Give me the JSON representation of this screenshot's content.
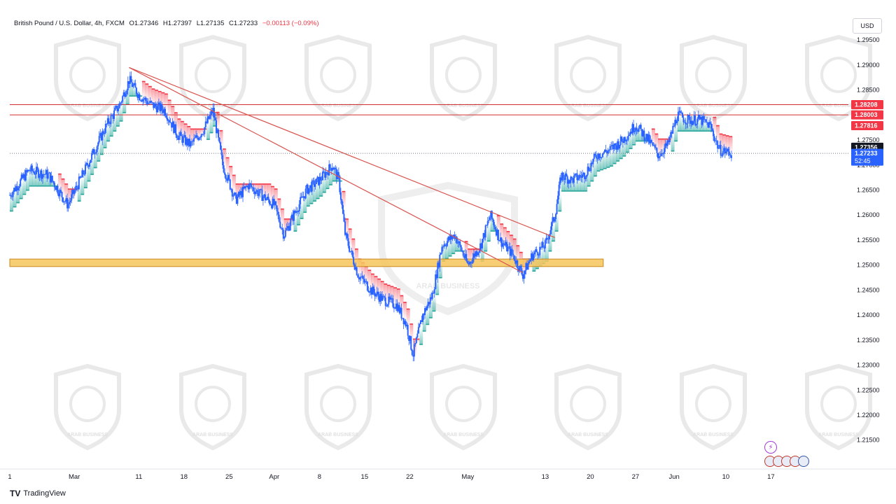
{
  "header": {
    "symbol": "British Pound / U.S. Dollar, 4h, FXCM",
    "open": "O1.27346",
    "high": "H1.27397",
    "low": "L1.27135",
    "close": "C1.27233",
    "change": "−0.00113 (−0.09%)"
  },
  "currency": "USD",
  "footer": {
    "brand": "TradingView"
  },
  "watermark": {
    "text": "ARAB BUSINESS"
  },
  "chart_data": {
    "type": "candlestick",
    "xlabel": "",
    "ylabel": "",
    "y_ticks": [
      "1.29500",
      "1.29000",
      "1.28500",
      "1.28000",
      "1.27500",
      "1.27000",
      "1.26500",
      "1.26000",
      "1.25500",
      "1.25000",
      "1.24500",
      "1.24000",
      "1.23500",
      "1.23000",
      "1.22500",
      "1.22000",
      "1.21500"
    ],
    "ylim": [
      1.2095,
      1.3002
    ],
    "x_ticks": [
      {
        "label": "1",
        "day": 0
      },
      {
        "label": "Mar",
        "day": 10
      },
      {
        "label": "11",
        "day": 20
      },
      {
        "label": "18",
        "day": 27
      },
      {
        "label": "25",
        "day": 34
      },
      {
        "label": "Apr",
        "day": 41
      },
      {
        "label": "8",
        "day": 48
      },
      {
        "label": "15",
        "day": 55
      },
      {
        "label": "22",
        "day": 62
      },
      {
        "label": "May",
        "day": 71
      },
      {
        "label": "13",
        "day": 83
      },
      {
        "label": "20",
        "day": 90
      },
      {
        "label": "27",
        "day": 97
      },
      {
        "label": "Jun",
        "day": 103
      },
      {
        "label": "10",
        "day": 111
      },
      {
        "label": "17",
        "day": 118
      }
    ],
    "xlim": [
      0,
      130
    ],
    "price_path": [
      [
        0,
        1.264
      ],
      [
        3,
        1.269
      ],
      [
        6,
        1.268
      ],
      [
        9,
        1.262
      ],
      [
        12,
        1.27
      ],
      [
        15,
        1.278
      ],
      [
        17,
        1.282
      ],
      [
        18.5,
        1.287
      ],
      [
        20,
        1.284
      ],
      [
        22,
        1.282
      ],
      [
        24,
        1.281
      ],
      [
        26,
        1.276
      ],
      [
        28,
        1.274
      ],
      [
        30,
        1.277
      ],
      [
        31.5,
        1.281
      ],
      [
        33,
        1.27
      ],
      [
        35,
        1.263
      ],
      [
        37,
        1.266
      ],
      [
        39,
        1.264
      ],
      [
        41,
        1.262
      ],
      [
        42.5,
        1.256
      ],
      [
        44,
        1.26
      ],
      [
        46,
        1.265
      ],
      [
        48,
        1.267
      ],
      [
        50,
        1.27
      ],
      [
        51,
        1.267
      ],
      [
        52,
        1.256
      ],
      [
        54,
        1.248
      ],
      [
        56,
        1.245
      ],
      [
        58,
        1.243
      ],
      [
        60,
        1.242
      ],
      [
        61.5,
        1.238
      ],
      [
        62.5,
        1.232
      ],
      [
        64,
        1.24
      ],
      [
        65.5,
        1.244
      ],
      [
        67,
        1.254
      ],
      [
        69,
        1.256
      ],
      [
        71,
        1.25
      ],
      [
        73,
        1.254
      ],
      [
        74.5,
        1.26
      ],
      [
        76,
        1.255
      ],
      [
        78,
        1.252
      ],
      [
        79.5,
        1.248
      ],
      [
        81,
        1.252
      ],
      [
        83,
        1.254
      ],
      [
        84.5,
        1.26
      ],
      [
        85.5,
        1.268
      ],
      [
        87,
        1.267
      ],
      [
        89,
        1.268
      ],
      [
        91,
        1.272
      ],
      [
        93,
        1.273
      ],
      [
        95,
        1.275
      ],
      [
        97,
        1.278
      ],
      [
        99,
        1.275
      ],
      [
        100.5,
        1.272
      ],
      [
        102,
        1.274
      ],
      [
        103.5,
        1.28
      ],
      [
        105,
        1.279
      ],
      [
        107,
        1.279
      ],
      [
        108.5,
        1.278
      ],
      [
        110,
        1.273
      ],
      [
        112,
        1.2723
      ]
    ],
    "trendlines": [
      {
        "from": [
          18.5,
          1.2895
        ],
        "to": [
          84.5,
          1.2555
        ]
      },
      {
        "from": [
          18.5,
          1.2895
        ],
        "to": [
          79.5,
          1.2485
        ]
      }
    ],
    "horizontal_levels": [
      1.28208,
      1.28003
    ],
    "support_zone": {
      "from": 1.2497,
      "to": 1.2512
    },
    "price_labels": [
      {
        "value": 1.28208,
        "text": "1.28208",
        "bg": "#f23645"
      },
      {
        "value": 1.28003,
        "text": "1.28003",
        "bg": "#f23645"
      },
      {
        "value": 1.27816,
        "text": "1.27816",
        "bg": "#f23645"
      },
      {
        "value": 1.27356,
        "text": "1.27356",
        "bg": "#131722"
      },
      {
        "value": 1.27233,
        "text": "1.27233",
        "sub": "52:45",
        "bg": "#2962ff"
      }
    ],
    "last_price": 1.27233,
    "colors": {
      "candle": "#2962ff",
      "trend_red": "#f23645",
      "trend_green": "#26a69a",
      "level_line": "#d32f2f",
      "zone_fill": "#f7c65d",
      "zone_border": "#c98a1b"
    },
    "grid": false
  }
}
